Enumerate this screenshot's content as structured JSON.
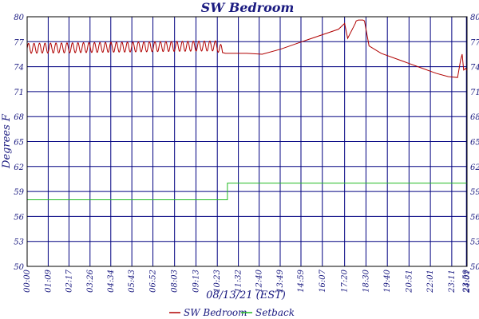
{
  "chart_data": {
    "type": "line",
    "title": "SW Bedroom",
    "xlabel": "08/13/21 (EST)",
    "ylabel": "Degrees F",
    "ylim": [
      50,
      80
    ],
    "yticks": [
      50,
      53,
      56,
      59,
      62,
      65,
      68,
      71,
      74,
      77,
      80
    ],
    "ytick_labels": [
      "50",
      "53",
      "56",
      "59",
      "62",
      "65",
      "68",
      "71",
      "74",
      "77",
      "80"
    ],
    "xlim": [
      0,
      1441
    ],
    "xticks": [
      0,
      69,
      137,
      206,
      274,
      343,
      412,
      483,
      553,
      623,
      692,
      760,
      829,
      897,
      967,
      1040,
      1110,
      1180,
      1251,
      1321,
      1391,
      1439,
      1441
    ],
    "xtick_labels": [
      "00:00",
      "01:09",
      "02:17",
      "03:26",
      "04:34",
      "05:43",
      "06:52",
      "08:03",
      "09:13",
      "10:23",
      "11:32",
      "12:40",
      "13:49",
      "14:59",
      "16:07",
      "17:20",
      "18:30",
      "19:40",
      "20:51",
      "22:01",
      "23:11",
      "23:59",
      "24:01"
    ],
    "grid": true,
    "legend": "bottom",
    "series": [
      {
        "name": "SW Bedroom",
        "color": "#b00000",
        "x": [
          0,
          620,
          650,
          720,
          770,
          830,
          900,
          980,
          1020,
          1040,
          1050,
          1075,
          1078,
          1085,
          1100,
          1105,
          1120,
          1160,
          1220,
          1280,
          1340,
          1380,
          1410,
          1420,
          1425,
          1430,
          1437,
          1441
        ],
        "y": [
          76.2,
          76.5,
          75.6,
          75.6,
          75.5,
          76.1,
          77.0,
          78.0,
          78.5,
          79.2,
          77.4,
          79.2,
          79.5,
          79.6,
          79.6,
          79.5,
          76.5,
          75.6,
          74.8,
          74.0,
          73.2,
          72.8,
          72.7,
          74.8,
          75.5,
          73.6,
          73.8,
          73.5
        ]
      },
      {
        "name": "Setback",
        "color": "#22bb22",
        "x": [
          0,
          656,
          656,
          1441
        ],
        "y": [
          58,
          58,
          60,
          60
        ]
      }
    ],
    "wave": {
      "series": 0,
      "x_end": 640,
      "amplitude": 0.6,
      "period": 18
    }
  }
}
